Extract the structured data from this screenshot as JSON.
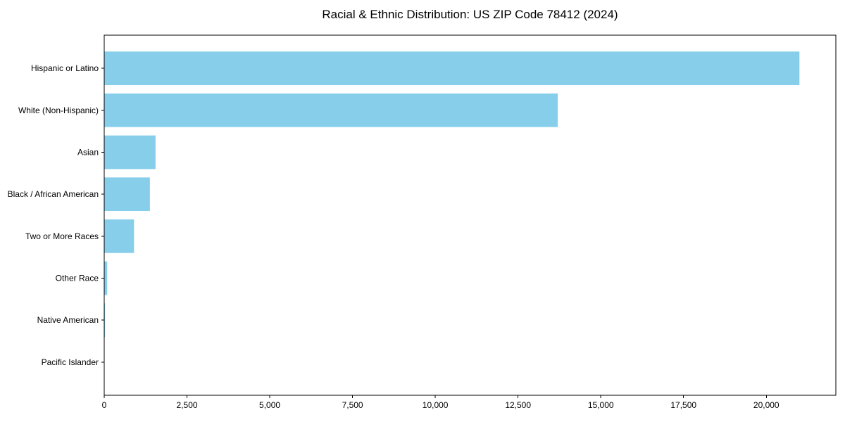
{
  "chart_data": {
    "type": "bar",
    "orientation": "horizontal",
    "title": "Racial & Ethnic Distribution: US ZIP Code 78412 (2024)",
    "categories": [
      "Hispanic or Latino",
      "White (Non-Hispanic)",
      "Asian",
      "Black / African American",
      "Two or More Races",
      "Other Race",
      "Native American",
      "Pacific Islander"
    ],
    "values": [
      21000,
      13700,
      1550,
      1380,
      900,
      90,
      25,
      10
    ],
    "xlabel": "",
    "ylabel": "",
    "xlim": [
      0,
      22100
    ],
    "xticks": [
      0,
      2500,
      5000,
      7500,
      10000,
      12500,
      15000,
      17500,
      20000
    ],
    "xtick_labels": [
      "0",
      "2,500",
      "5,000",
      "7,500",
      "10,000",
      "12,500",
      "15,000",
      "17,500",
      "20,000"
    ],
    "bar_color": "#87CEEB",
    "axis_color": "#000000",
    "text_color": "#000000",
    "background_color": "#ffffff",
    "grid": false,
    "legend": false
  }
}
